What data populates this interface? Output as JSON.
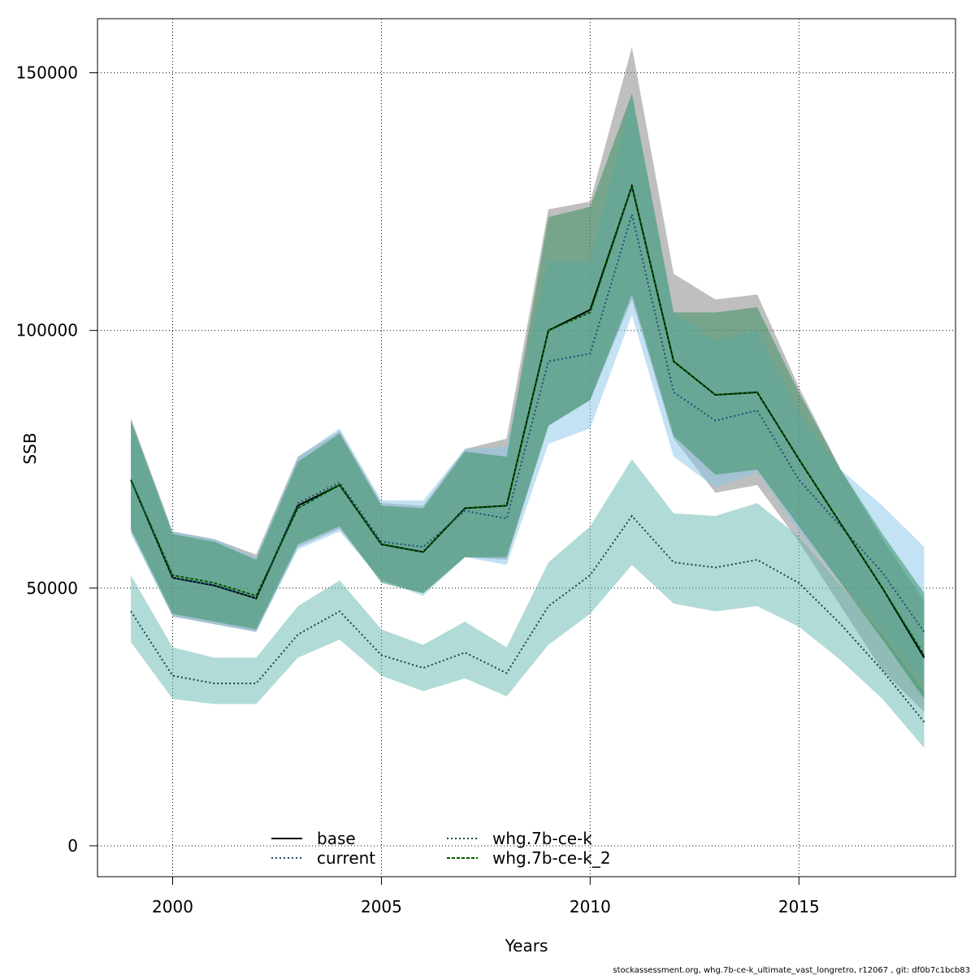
{
  "chart_data": {
    "type": "line",
    "xlabel": "Years",
    "ylabel": "SSB",
    "xlim": [
      1998.2,
      2018.75
    ],
    "ylim": [
      -6000,
      160500
    ],
    "x_ticks": [
      2000,
      2005,
      2010,
      2015
    ],
    "x_tick_labels": [
      "2000",
      "2005",
      "2010",
      "2015"
    ],
    "y_ticks": [
      0,
      50000,
      100000,
      150000
    ],
    "y_tick_labels": [
      "0",
      "50000",
      "100000",
      "150000"
    ],
    "grid": true,
    "legend_position": "bottom-center",
    "x": [
      1999,
      2000,
      2001,
      2002,
      2003,
      2004,
      2005,
      2006,
      2007,
      2008,
      2009,
      2010,
      2011,
      2012,
      2013,
      2014,
      2015,
      2016,
      2017,
      2018
    ],
    "series": [
      {
        "name": "base",
        "line_color": "#000000",
        "dash": "solid",
        "band_color": "#808080",
        "values": [
          71000,
          52000,
          50500,
          48000,
          66000,
          70000,
          58500,
          57000,
          65500,
          66000,
          100000,
          104000,
          128000,
          94000,
          87500,
          88000,
          75000,
          62500,
          50000,
          36500
        ],
        "lower": [
          61000,
          44500,
          43000,
          41500,
          58000,
          61500,
          51500,
          49000,
          56000,
          55500,
          81500,
          86500,
          106000,
          79000,
          68500,
          70000,
          59000,
          46500,
          34000,
          26000
        ],
        "upper": [
          83000,
          61000,
          59500,
          56500,
          75500,
          80500,
          66500,
          66000,
          77000,
          79000,
          123500,
          125000,
          155000,
          111000,
          106000,
          107000,
          89000,
          73000,
          59500,
          47500
        ]
      },
      {
        "name": "current",
        "line_color": "#1f4e79",
        "dash": "dotted",
        "band_color": "#87c6e8",
        "values": [
          71000,
          52000,
          50500,
          48000,
          66500,
          70500,
          59000,
          58000,
          65000,
          63500,
          94000,
          95500,
          122500,
          88000,
          82500,
          84500,
          71000,
          62000,
          53000,
          41500
        ],
        "lower": [
          60500,
          44500,
          43000,
          41500,
          57500,
          61000,
          51500,
          48500,
          56000,
          54500,
          78000,
          81000,
          103000,
          75500,
          69500,
          72500,
          61000,
          51000,
          42000,
          31000
        ],
        "upper": [
          82500,
          61000,
          59500,
          56000,
          75500,
          81000,
          67000,
          67000,
          77000,
          77500,
          113500,
          113500,
          145500,
          103500,
          98000,
          100000,
          84000,
          73000,
          66000,
          58000
        ]
      },
      {
        "name": "whg.7b-ce-k",
        "line_color": "#0e4a47",
        "dash": "dotted",
        "band_color": "#63b8ad",
        "values": [
          45500,
          33000,
          31500,
          31500,
          41000,
          45500,
          37000,
          34500,
          37500,
          33500,
          46500,
          52500,
          64000,
          55000,
          54000,
          55500,
          51000,
          43000,
          34000,
          24000
        ],
        "lower": [
          39500,
          28500,
          27500,
          27500,
          36500,
          40000,
          33000,
          30000,
          32500,
          29000,
          39000,
          45000,
          54500,
          47000,
          45500,
          46500,
          42500,
          36000,
          28500,
          19000
        ],
        "upper": [
          52500,
          38500,
          36500,
          36500,
          46500,
          51500,
          42000,
          39000,
          43500,
          38500,
          55000,
          62000,
          75000,
          64500,
          64000,
          66500,
          60000,
          50500,
          41000,
          30000
        ]
      },
      {
        "name": "whg.7b-ce-k_2",
        "line_color": "#005a00",
        "dash": "dashed",
        "band_color": "#2e8b57",
        "values": [
          71000,
          52500,
          51000,
          48500,
          65500,
          70000,
          58500,
          57000,
          65500,
          66000,
          100000,
          103500,
          128000,
          94000,
          87500,
          88000,
          75000,
          62500,
          50000,
          37000
        ],
        "lower": [
          61500,
          45000,
          43500,
          42000,
          58500,
          62000,
          51000,
          49000,
          56000,
          56000,
          81500,
          86500,
          107000,
          79500,
          72000,
          73000,
          62000,
          51000,
          40000,
          28500
        ],
        "upper": [
          82500,
          60500,
          59000,
          55500,
          74500,
          80000,
          66000,
          65500,
          76500,
          75500,
          122000,
          124000,
          146000,
          103500,
          103500,
          104500,
          88000,
          73000,
          60500,
          49000
        ]
      }
    ],
    "footer": "stockassessment.org, whg.7b-ce-k_ultimate_vast_longretro, r12067 , git: df0b7c1bcb83"
  }
}
